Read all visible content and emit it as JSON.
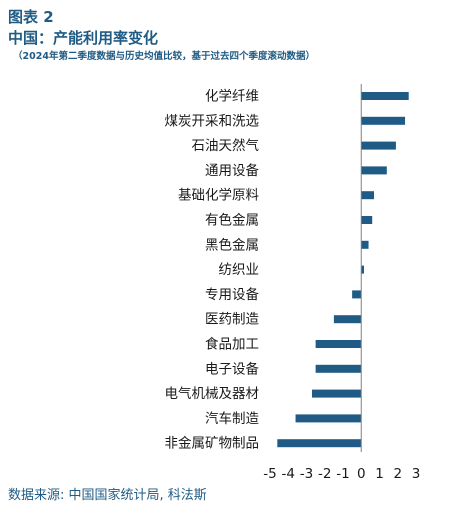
{
  "header": {
    "figure_label": "图表 2",
    "title": "中国：产能利用率变化",
    "subtitle": "（2024年第二季度数据与历史均值比较，基于过去四个季度滚动数据）"
  },
  "source": "数据来源: 中国国家统计局, 科法斯",
  "colors": {
    "bar": "#1f5b84",
    "axis": "#808080",
    "text": "#1a1a1a",
    "header": "#1f5b84"
  },
  "chart_data": {
    "type": "bar",
    "orientation": "horizontal",
    "categories": [
      "化学纤维",
      "煤炭开采和洗选",
      "石油天然气",
      "通用设备",
      "基础化学原料",
      "有色金属",
      "黑色金属",
      "纺织业",
      "专用设备",
      "医药制造",
      "食品加工",
      "电子设备",
      "电气机械及器材",
      "汽车制造",
      "非金属矿物制品"
    ],
    "values": [
      2.6,
      2.4,
      1.9,
      1.4,
      0.7,
      0.6,
      0.4,
      0.15,
      -0.5,
      -1.5,
      -2.5,
      -2.5,
      -2.7,
      -3.6,
      -4.6
    ],
    "xlim": [
      -5,
      3
    ],
    "xticks": [
      -5,
      -4,
      -3,
      -2,
      -1,
      0,
      1,
      2,
      3
    ],
    "xtick_labels": [
      "-5",
      "-4",
      "-3",
      "-2",
      "-1",
      "0",
      "1",
      "2",
      "3"
    ],
    "grid": false,
    "legend": "none"
  }
}
